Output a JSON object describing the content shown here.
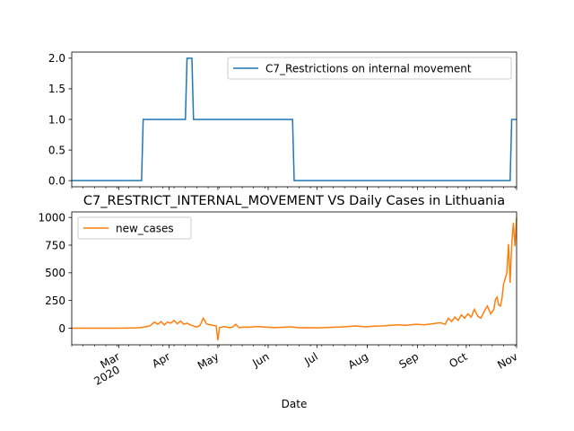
{
  "chart_data": [
    {
      "type": "line",
      "title": "",
      "xlabel": "",
      "ylabel": "",
      "ylim": [
        -0.1,
        2.1
      ],
      "yticks": [
        0.0,
        0.5,
        1.0,
        1.5,
        2.0
      ],
      "ytick_labels": [
        "0.0",
        "0.5",
        "1.0",
        "1.5",
        "2.0"
      ],
      "legend": "top-right",
      "grid": false,
      "series": [
        {
          "name": "C7_Restrictions on internal movement",
          "color": "#1f77b4",
          "points": [
            [
              "2020-02-01",
              0
            ],
            [
              "2020-03-15",
              0
            ],
            [
              "2020-03-16",
              1
            ],
            [
              "2020-04-11",
              1
            ],
            [
              "2020-04-12",
              2
            ],
            [
              "2020-04-15",
              2
            ],
            [
              "2020-04-16",
              1
            ],
            [
              "2020-06-16",
              1
            ],
            [
              "2020-06-17",
              0
            ],
            [
              "2020-10-28",
              0
            ],
            [
              "2020-10-29",
              1
            ],
            [
              "2020-11-01",
              1
            ]
          ]
        }
      ]
    },
    {
      "type": "line",
      "title": "C7_RESTRICT_INTERNAL_MOVEMENT VS Daily Cases in Lithuania",
      "xlabel": "Date",
      "ylabel": "",
      "ylim": [
        -150,
        1050
      ],
      "yticks": [
        0,
        250,
        500,
        750,
        1000
      ],
      "ytick_labels": [
        "0",
        "250",
        "500",
        "750",
        "1000"
      ],
      "x_range": [
        "2020-02-01",
        "2020-11-01"
      ],
      "xtick_labels": [
        {
          "date": "2020-03-01",
          "label": "Mar",
          "sub": "2020"
        },
        {
          "date": "2020-04-01",
          "label": "Apr",
          "sub": ""
        },
        {
          "date": "2020-05-01",
          "label": "May",
          "sub": ""
        },
        {
          "date": "2020-06-01",
          "label": "Jun",
          "sub": ""
        },
        {
          "date": "2020-07-01",
          "label": "Jul",
          "sub": ""
        },
        {
          "date": "2020-08-01",
          "label": "Aug",
          "sub": ""
        },
        {
          "date": "2020-09-01",
          "label": "Sep",
          "sub": ""
        },
        {
          "date": "2020-10-01",
          "label": "Oct",
          "sub": ""
        },
        {
          "date": "2020-11-01",
          "label": "Nov",
          "sub": ""
        }
      ],
      "legend": "top-left",
      "grid": false,
      "series": [
        {
          "name": "new_cases",
          "color": "#ff7f0e",
          "points": [
            [
              "2020-02-01",
              0
            ],
            [
              "2020-02-28",
              0
            ],
            [
              "2020-03-05",
              1
            ],
            [
              "2020-03-12",
              3
            ],
            [
              "2020-03-16",
              8
            ],
            [
              "2020-03-20",
              20
            ],
            [
              "2020-03-23",
              55
            ],
            [
              "2020-03-25",
              35
            ],
            [
              "2020-03-27",
              60
            ],
            [
              "2020-03-29",
              30
            ],
            [
              "2020-03-31",
              55
            ],
            [
              "2020-04-02",
              45
            ],
            [
              "2020-04-04",
              70
            ],
            [
              "2020-04-06",
              40
            ],
            [
              "2020-04-08",
              65
            ],
            [
              "2020-04-10",
              35
            ],
            [
              "2020-04-12",
              45
            ],
            [
              "2020-04-14",
              30
            ],
            [
              "2020-04-16",
              20
            ],
            [
              "2020-04-18",
              10
            ],
            [
              "2020-04-20",
              25
            ],
            [
              "2020-04-22",
              90
            ],
            [
              "2020-04-24",
              40
            ],
            [
              "2020-04-26",
              30
            ],
            [
              "2020-04-28",
              25
            ],
            [
              "2020-04-30",
              20
            ],
            [
              "2020-05-01",
              -110
            ],
            [
              "2020-05-02",
              5
            ],
            [
              "2020-05-05",
              15
            ],
            [
              "2020-05-08",
              5
            ],
            [
              "2020-05-10",
              10
            ],
            [
              "2020-05-12",
              35
            ],
            [
              "2020-05-14",
              5
            ],
            [
              "2020-05-17",
              10
            ],
            [
              "2020-05-20",
              8
            ],
            [
              "2020-05-25",
              15
            ],
            [
              "2020-05-30",
              10
            ],
            [
              "2020-06-05",
              5
            ],
            [
              "2020-06-10",
              8
            ],
            [
              "2020-06-15",
              12
            ],
            [
              "2020-06-20",
              4
            ],
            [
              "2020-06-25",
              5
            ],
            [
              "2020-07-01",
              3
            ],
            [
              "2020-07-05",
              5
            ],
            [
              "2020-07-10",
              8
            ],
            [
              "2020-07-15",
              10
            ],
            [
              "2020-07-20",
              15
            ],
            [
              "2020-07-25",
              20
            ],
            [
              "2020-07-31",
              12
            ],
            [
              "2020-08-05",
              18
            ],
            [
              "2020-08-10",
              20
            ],
            [
              "2020-08-15",
              25
            ],
            [
              "2020-08-20",
              30
            ],
            [
              "2020-08-25",
              25
            ],
            [
              "2020-08-31",
              35
            ],
            [
              "2020-09-05",
              30
            ],
            [
              "2020-09-10",
              40
            ],
            [
              "2020-09-15",
              50
            ],
            [
              "2020-09-18",
              35
            ],
            [
              "2020-09-20",
              90
            ],
            [
              "2020-09-22",
              60
            ],
            [
              "2020-09-24",
              100
            ],
            [
              "2020-09-26",
              70
            ],
            [
              "2020-09-28",
              120
            ],
            [
              "2020-09-30",
              90
            ],
            [
              "2020-10-02",
              130
            ],
            [
              "2020-10-04",
              100
            ],
            [
              "2020-10-06",
              170
            ],
            [
              "2020-10-08",
              110
            ],
            [
              "2020-10-10",
              90
            ],
            [
              "2020-10-12",
              150
            ],
            [
              "2020-10-14",
              200
            ],
            [
              "2020-10-16",
              130
            ],
            [
              "2020-10-18",
              170
            ],
            [
              "2020-10-19",
              260
            ],
            [
              "2020-10-20",
              280
            ],
            [
              "2020-10-21",
              210
            ],
            [
              "2020-10-22",
              200
            ],
            [
              "2020-10-23",
              270
            ],
            [
              "2020-10-24",
              400
            ],
            [
              "2020-10-25",
              450
            ],
            [
              "2020-10-26",
              500
            ],
            [
              "2020-10-27",
              760
            ],
            [
              "2020-10-28",
              410
            ],
            [
              "2020-10-29",
              760
            ],
            [
              "2020-10-30",
              950
            ],
            [
              "2020-10-31",
              740
            ],
            [
              "2020-11-01",
              1000
            ]
          ]
        }
      ]
    }
  ]
}
